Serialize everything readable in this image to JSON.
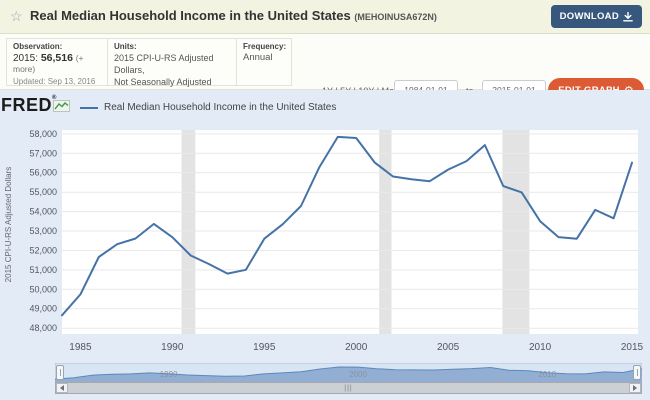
{
  "header": {
    "star_icon": "☆",
    "title": "Real Median Household Income in the United States",
    "series_id": "(MEHOINUSA672N)",
    "download_label": "DOWNLOAD"
  },
  "info": {
    "observation": {
      "label": "Observation:",
      "value_prefix": "2015:",
      "value": "56,516",
      "more": "(+ more)",
      "updated": "Updated: Sep 13, 2016"
    },
    "units": {
      "label": "Units:",
      "line1": "2015 CPI-U-RS Adjusted Dollars,",
      "line2": "Not Seasonally Adjusted"
    },
    "frequency": {
      "label": "Frequency:",
      "value": "Annual"
    },
    "range_links": "1Y | 5Y | 10Y | Max",
    "date_from": "1984-01-01",
    "to_label": "to",
    "date_to": "2015-01-01",
    "edit_graph_label": "EDIT GRAPH"
  },
  "legend": {
    "fred_logo": "FRED",
    "fred_reg": "®",
    "series_label": "Real Median Household Income in the United States"
  },
  "chart_data": {
    "type": "line",
    "title": "Real Median Household Income in the United States",
    "xlabel": "",
    "ylabel": "2015 CPI-U-RS Adjusted Dollars",
    "x": [
      1984,
      1985,
      1986,
      1987,
      1988,
      1989,
      1990,
      1991,
      1992,
      1993,
      1994,
      1995,
      1996,
      1997,
      1998,
      1999,
      2000,
      2001,
      2002,
      2003,
      2004,
      2005,
      2006,
      2007,
      2008,
      2009,
      2010,
      2011,
      2012,
      2013,
      2014,
      2015
    ],
    "values": [
      48664,
      49739,
      51665,
      52322,
      52614,
      53367,
      52684,
      51738,
      51300,
      50808,
      51006,
      52604,
      53345,
      54290,
      56292,
      57843,
      57790,
      56531,
      55807,
      55665,
      55565,
      56160,
      56598,
      57423,
      55313,
      54988,
      53507,
      52690,
      52605,
      54089,
      53657,
      56516
    ],
    "ylim": [
      47700,
      58200
    ],
    "yticks": [
      48000,
      49000,
      50000,
      51000,
      52000,
      53000,
      54000,
      55000,
      56000,
      57000,
      58000
    ],
    "xticks": [
      1985,
      1990,
      1995,
      2000,
      2005,
      2010,
      2015
    ],
    "recessions": [
      [
        1990.5,
        1991.25
      ],
      [
        2001.25,
        2001.92
      ],
      [
        2007.95,
        2009.42
      ]
    ],
    "line_color": "#4572a7",
    "grid": true,
    "legend_position": "top-left"
  },
  "slider": {
    "labels": [
      "1990",
      "2000",
      "2010"
    ],
    "grip": "|||"
  }
}
